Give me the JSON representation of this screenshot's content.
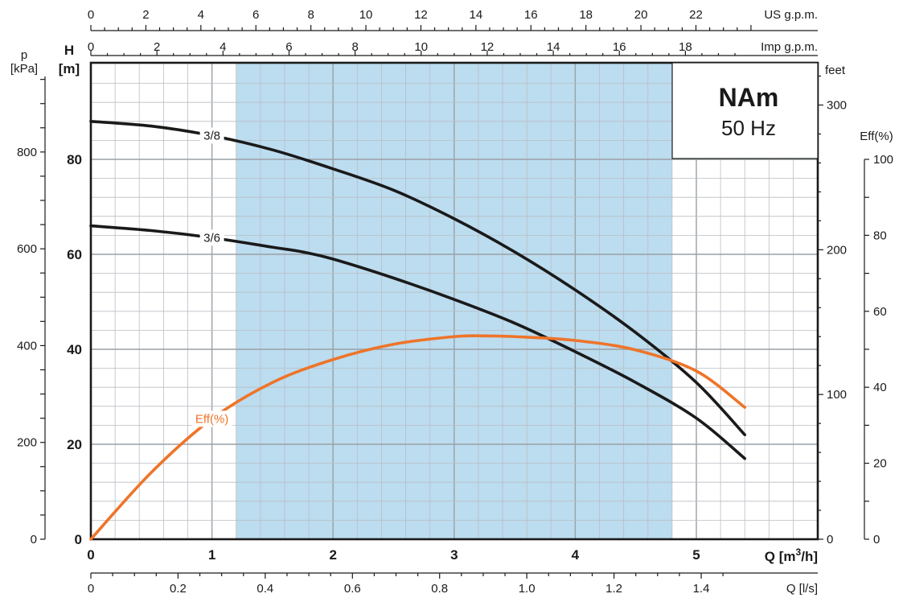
{
  "chart_data": {
    "type": "line",
    "title": "NAm",
    "subtitle": "50 Hz",
    "xlabel": "Q [m³/h]",
    "ylabel": "H [m]",
    "xlim": [
      0,
      5.85
    ],
    "ylim": [
      0,
      100
    ],
    "colors": {
      "head": "#1a1a1a",
      "efficiency": "#ee7429",
      "band": "#bcdcef"
    },
    "grid": true,
    "recommended_range": [
      1.2,
      4.8
    ],
    "series": [
      {
        "name": "3/8",
        "axis": "H [m]",
        "x": [
          0,
          0.5,
          1.0,
          1.5,
          2.0,
          2.5,
          3.0,
          3.5,
          4.0,
          4.5,
          5.0,
          5.4
        ],
        "y": [
          88,
          87,
          85,
          82,
          78,
          73.5,
          67.5,
          60.5,
          52.5,
          43.5,
          33,
          22
        ]
      },
      {
        "name": "3/6",
        "axis": "H [m]",
        "x": [
          0,
          0.5,
          1.0,
          1.5,
          1.75,
          2.0,
          2.5,
          3.0,
          3.5,
          4.0,
          4.5,
          5.0,
          5.4
        ],
        "y": [
          66,
          65,
          63.5,
          61.5,
          60.5,
          59,
          55,
          50.5,
          45.5,
          39.5,
          33,
          25.5,
          17
        ]
      },
      {
        "name": "Eff(%)",
        "axis": "Eff(%)",
        "x": [
          0,
          0.5,
          1.0,
          1.5,
          2.0,
          2.5,
          3.0,
          3.25,
          3.5,
          4.0,
          4.5,
          5.0,
          5.4
        ],
        "y": [
          0,
          17.5,
          31.5,
          41,
          47,
          51,
          53,
          53.2,
          53,
          52,
          49.5,
          44,
          34.5
        ]
      }
    ],
    "axes": {
      "bottom_main": {
        "label": "Q [m³/h]",
        "ticks": [
          "0",
          "1",
          "2",
          "3",
          "4",
          "5"
        ]
      },
      "bottom_ls": {
        "label": "Q [l/s]",
        "ticks": [
          "0",
          "0.2",
          "0.4",
          "0.6",
          "0.8",
          "1.0",
          "1.2",
          "1.4"
        ]
      },
      "top_us": {
        "label": "US g.p.m.",
        "ticks": [
          "0",
          "2",
          "4",
          "6",
          "8",
          "10",
          "12",
          "14",
          "16",
          "18",
          "20",
          "22"
        ]
      },
      "top_imp": {
        "label": "Imp g.p.m.",
        "ticks": [
          "0",
          "2",
          "4",
          "6",
          "8",
          "10",
          "12",
          "14",
          "16",
          "18"
        ]
      },
      "left_head": {
        "label_top": "H",
        "label_bottom": "[m]",
        "ticks": [
          "0",
          "20",
          "40",
          "60",
          "80"
        ]
      },
      "left_pressure": {
        "label_top": "p",
        "label_bottom": "[kPa]",
        "ticks": [
          "0",
          "200",
          "400",
          "600",
          "800"
        ]
      },
      "right_feet": {
        "label": "feet",
        "ticks": [
          "0",
          "100",
          "200",
          "300"
        ]
      },
      "right_eff": {
        "label": "Eff(%)",
        "ticks": [
          "0",
          "20",
          "40",
          "60",
          "80",
          "100"
        ]
      }
    }
  }
}
